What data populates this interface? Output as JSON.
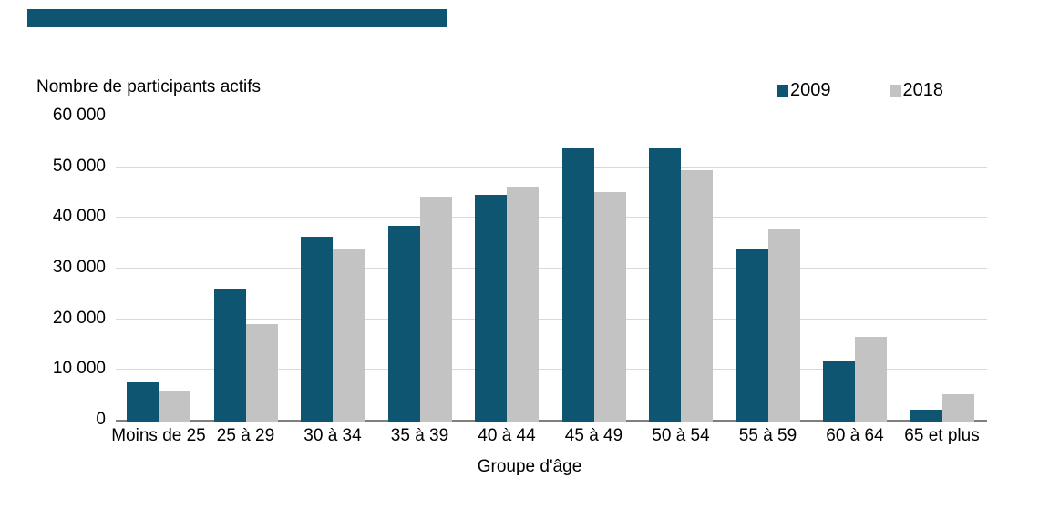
{
  "redaction": {
    "note": "solid bar across top of figure (title area)",
    "color": "#0e5572"
  },
  "legend": {
    "items": [
      {
        "label": "2009",
        "color": "#0e5572"
      },
      {
        "label": "2018",
        "color": "#c3c3c3"
      }
    ]
  },
  "chart_data": {
    "type": "bar",
    "title": "",
    "ylabel": "Nombre de participants actifs",
    "xlabel": "Groupe d'âge",
    "categories": [
      "Moins de 25",
      "25 à 29",
      "30 à 34",
      "35 à 39",
      "40 à 44",
      "45 à 49",
      "50 à 54",
      "55 à 59",
      "60 à 64",
      "65 et plus"
    ],
    "series": [
      {
        "name": "2009",
        "color": "#0e5572",
        "values": [
          7300,
          25900,
          36100,
          38300,
          44400,
          53600,
          53600,
          33800,
          11700,
          1900
        ]
      },
      {
        "name": "2018",
        "color": "#c3c3c3",
        "values": [
          5800,
          18900,
          33800,
          44000,
          46000,
          44900,
          49200,
          37800,
          16400,
          5100
        ]
      }
    ],
    "ylim": [
      0,
      60000
    ],
    "ytick_values": [
      0,
      10000,
      20000,
      30000,
      40000,
      50000,
      60000
    ],
    "ytick_labels": [
      "0",
      "10 000",
      "20 000",
      "30 000",
      "40 000",
      "50 000",
      "60 000"
    ],
    "grid": true,
    "legend_position": "top-right",
    "colors": {
      "gridline": "#d9d9d9",
      "axis_line": "#7f7f7f",
      "text": "#000000",
      "background": "#ffffff"
    }
  }
}
